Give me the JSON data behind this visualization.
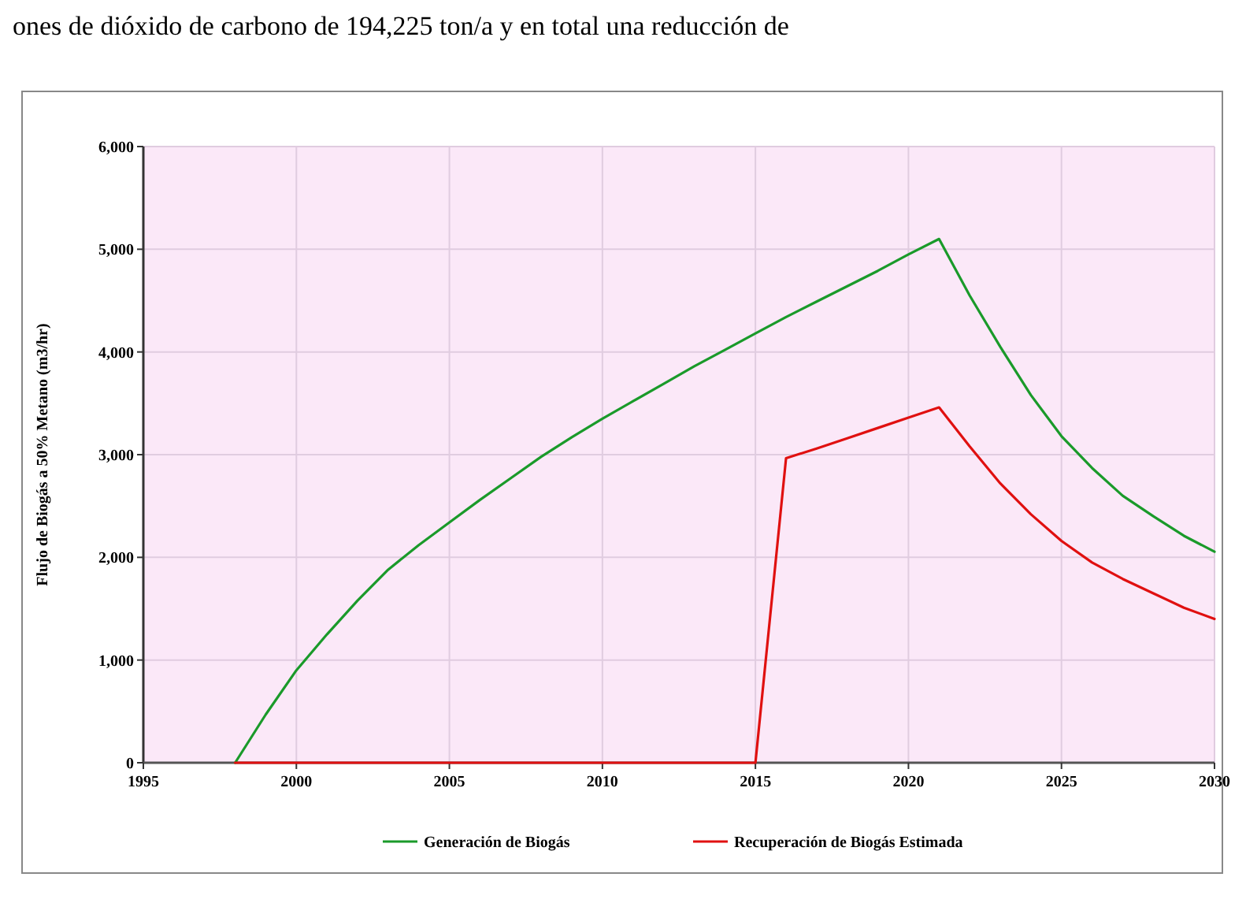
{
  "chart_data": {
    "type": "line",
    "ylabel": "Flujo de Biogás a 50% Metano (m3/hr)",
    "annotations": [
      "ones de dióxido de carbono de 194,225 ton/a y en total una reducción de"
    ],
    "x": [
      1998,
      1999,
      2000,
      2001,
      2002,
      2003,
      2004,
      2005,
      2006,
      2007,
      2008,
      2009,
      2010,
      2011,
      2012,
      2013,
      2014,
      2015,
      2016,
      2017,
      2018,
      2019,
      2020,
      2021,
      2022,
      2023,
      2024,
      2025,
      2026,
      2027,
      2028,
      2029,
      2030
    ],
    "series": [
      {
        "name": "Generación de Biogás",
        "color": "#1a9a2a",
        "values": [
          0,
          470,
          900,
          1250,
          1580,
          1880,
          2120,
          2340,
          2560,
          2770,
          2980,
          3170,
          3350,
          3520,
          3690,
          3860,
          4020,
          4180,
          4340,
          4490,
          4640,
          4790,
          4950,
          5100,
          4550,
          4050,
          3580,
          3180,
          2870,
          2600,
          2400,
          2210,
          2055
        ]
      },
      {
        "name": "Recuperación de Biogás Estimada",
        "color": "#e01010",
        "values": [
          0,
          0,
          0,
          0,
          0,
          0,
          0,
          0,
          0,
          0,
          0,
          0,
          0,
          0,
          0,
          0,
          0,
          0,
          2965,
          3060,
          3160,
          3260,
          3360,
          3460,
          3080,
          2720,
          2420,
          2160,
          1950,
          1790,
          1650,
          1510,
          1400
        ]
      }
    ],
    "xlim": [
      1995,
      2030
    ],
    "xticks": [
      1995,
      2000,
      2005,
      2010,
      2015,
      2020,
      2025,
      2030
    ],
    "ylim": [
      0,
      6000
    ],
    "yticks": [
      {
        "value": 0,
        "label": "0"
      },
      {
        "value": 1000,
        "label": "1,000"
      },
      {
        "value": 2000,
        "label": "2,000"
      },
      {
        "value": 3000,
        "label": "3,000"
      },
      {
        "value": 4000,
        "label": "4,000"
      },
      {
        "value": 5000,
        "label": "5,000"
      },
      {
        "value": 6000,
        "label": "6,000"
      }
    ],
    "grid": true,
    "legend": "bottom"
  }
}
